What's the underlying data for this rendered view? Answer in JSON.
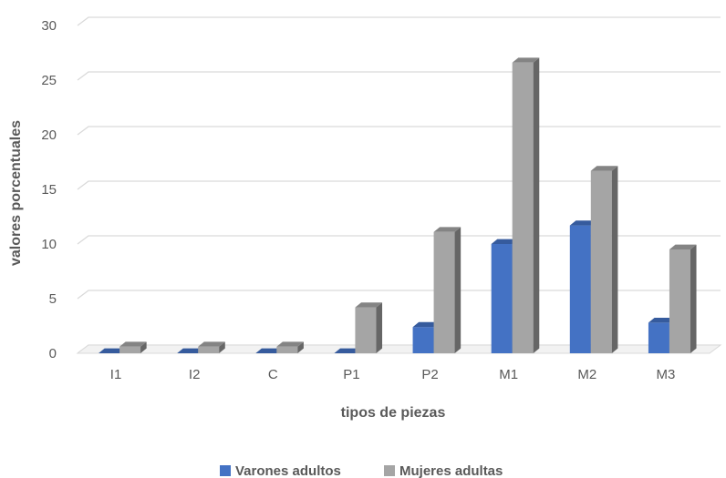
{
  "chart_data": {
    "type": "bar",
    "categories": [
      "I1",
      "I2",
      "C",
      "P1",
      "P2",
      "M1",
      "M2",
      "M3"
    ],
    "series": [
      {
        "name": "Varones adultos",
        "values": [
          0,
          0,
          0,
          0,
          2.4,
          10,
          11.7,
          2.8
        ],
        "color": "#4472C4"
      },
      {
        "name": "Mujeres adultas",
        "values": [
          0.6,
          0.6,
          0.6,
          4.2,
          11.1,
          26.6,
          16.7,
          9.5
        ],
        "color": "#A5A5A5"
      }
    ],
    "y_ticks": [
      "0",
      "5",
      "10",
      "15",
      "20",
      "25",
      "30"
    ],
    "ylim": [
      0,
      30
    ],
    "xlabel": "tipos de piezas",
    "ylabel": "valores porcentuales",
    "grid": true,
    "legend_position": "bottom",
    "style": "3d-column"
  }
}
